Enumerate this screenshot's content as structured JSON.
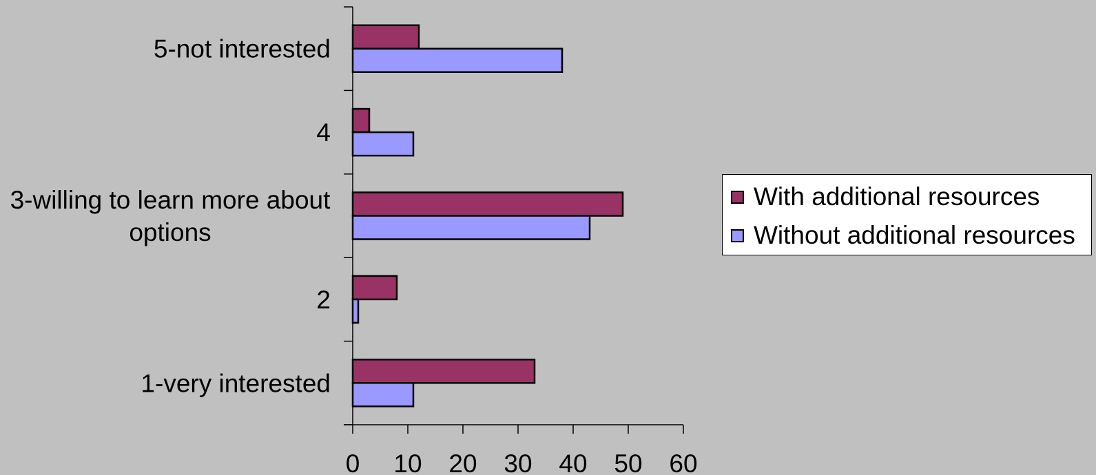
{
  "chart_data": {
    "type": "bar",
    "orientation": "horizontal",
    "categories": [
      "1-very interested",
      "2",
      "3-willing to learn more about options",
      "4",
      "5-not interested"
    ],
    "category_label_lines": [
      [
        "1-very interested"
      ],
      [
        "2"
      ],
      [
        "3-willing to learn more about",
        "options"
      ],
      [
        "4"
      ],
      [
        "5-not interested"
      ]
    ],
    "series": [
      {
        "name": "With additional resources",
        "color": "#993366",
        "values": [
          33,
          8,
          49,
          3,
          12
        ]
      },
      {
        "name": "Without additional resources",
        "color": "#9999ff",
        "values": [
          11,
          1,
          43,
          11,
          38
        ]
      }
    ],
    "xlim": [
      0,
      60
    ],
    "x_ticks": [
      "0",
      "10",
      "20",
      "30",
      "40",
      "50",
      "60"
    ],
    "title": "",
    "xlabel": "",
    "ylabel": "",
    "grid": false,
    "legend_position": "right"
  }
}
